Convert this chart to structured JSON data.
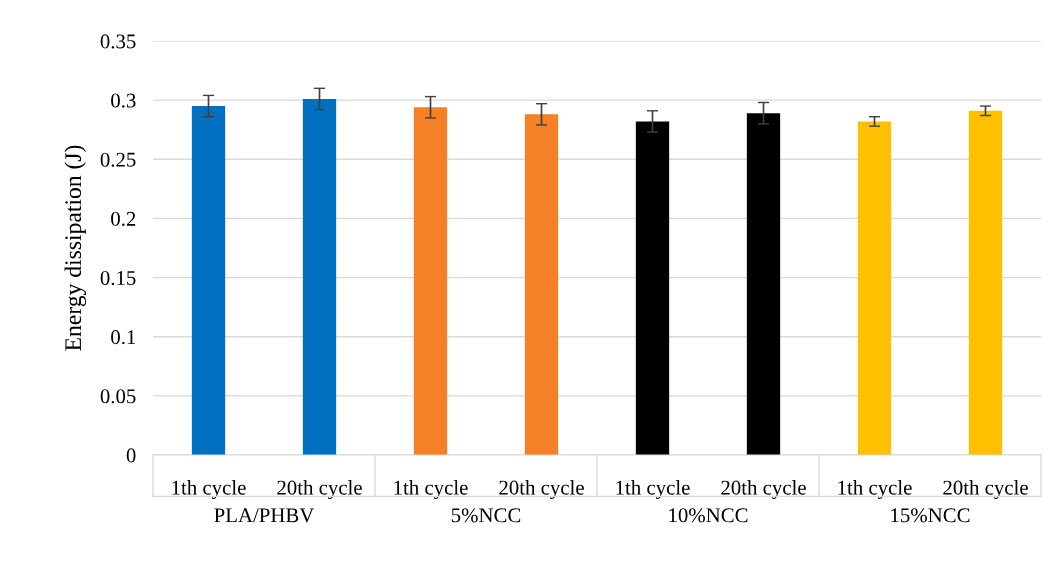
{
  "chart_data": {
    "type": "bar",
    "ylabel": "Energy dissipation (J)",
    "categories": [
      "1th cycle",
      "20th cycle",
      "1th cycle",
      "20th cycle",
      "1th cycle",
      "20th cycle",
      "1th cycle",
      "20th cycle"
    ],
    "values": [
      0.295,
      0.301,
      0.294,
      0.288,
      0.282,
      0.289,
      0.282,
      0.291
    ],
    "errors": [
      0.009,
      0.009,
      0.009,
      0.009,
      0.009,
      0.009,
      0.004,
      0.004
    ],
    "colors": [
      "#0070c0",
      "#0070c0",
      "#f58025",
      "#f58025",
      "#000000",
      "#000000",
      "#ffc000",
      "#ffc000"
    ],
    "annotations": [
      "PLA/PHBV",
      "5%NCC",
      "10%NCC",
      "15%NCC"
    ],
    "ylim": [
      0,
      0.35
    ],
    "yticks": [
      0,
      0.05,
      0.1,
      0.15,
      0.2,
      0.25,
      0.3,
      0.35
    ],
    "grid": "y"
  }
}
